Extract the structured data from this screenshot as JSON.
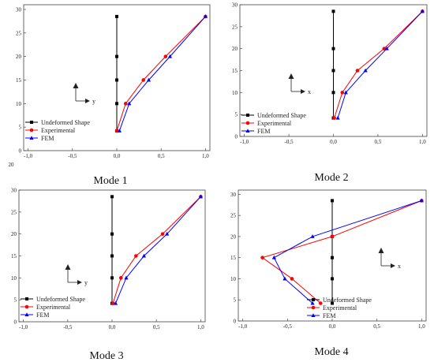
{
  "chart_data": [
    {
      "type": "line",
      "caption": "Mode 1",
      "x_ticks": [
        "-1,0",
        "-0,5",
        "0,0",
        "0,5",
        "1,0"
      ],
      "y_ticks": [
        "0",
        "5",
        "10",
        "15",
        "20",
        "25",
        "30"
      ],
      "xlim": [
        -1.05,
        1.05
      ],
      "ylim": [
        0,
        31
      ],
      "direction_label": "y",
      "series": [
        {
          "name": "Undeformed Shape",
          "color": "#000000",
          "marker": "square",
          "points": [
            [
              0,
              4.2
            ],
            [
              0,
              10
            ],
            [
              0,
              15
            ],
            [
              0,
              20
            ],
            [
              0,
              28.5
            ]
          ]
        },
        {
          "name": "Experimental",
          "color": "#ff0000",
          "marker": "circle",
          "points": [
            [
              0,
              4.2
            ],
            [
              0.1,
              10
            ],
            [
              0.3,
              15
            ],
            [
              0.55,
              20
            ],
            [
              1.0,
              28.5
            ]
          ]
        },
        {
          "name": "FEM",
          "color": "#0000ff",
          "marker": "triangle",
          "points": [
            [
              0.03,
              4.2
            ],
            [
              0.14,
              10
            ],
            [
              0.36,
              15
            ],
            [
              0.6,
              20
            ],
            [
              1.0,
              28.5
            ]
          ]
        }
      ]
    },
    {
      "type": "line",
      "caption": "Mode 2",
      "x_ticks": [
        "-1,0",
        "-0,5",
        "0,0",
        "0,5",
        "1,0"
      ],
      "y_ticks": [
        "0",
        "5",
        "10",
        "15",
        "20",
        "25",
        "30"
      ],
      "xlim": [
        -1.05,
        1.05
      ],
      "ylim": [
        0,
        30
      ],
      "direction_label": "x",
      "series": [
        {
          "name": "Undeformed Shape",
          "color": "#000000",
          "marker": "square",
          "points": [
            [
              0,
              4.2
            ],
            [
              0,
              10
            ],
            [
              0,
              15
            ],
            [
              0,
              20
            ],
            [
              0,
              28.5
            ]
          ]
        },
        {
          "name": "Experimental",
          "color": "#ff0000",
          "marker": "circle",
          "points": [
            [
              0.01,
              4.2
            ],
            [
              0.1,
              10
            ],
            [
              0.27,
              15
            ],
            [
              0.57,
              20
            ],
            [
              1.0,
              28.5
            ]
          ]
        },
        {
          "name": "FEM",
          "color": "#0000ff",
          "marker": "triangle",
          "points": [
            [
              0.05,
              4.2
            ],
            [
              0.14,
              10
            ],
            [
              0.36,
              15
            ],
            [
              0.6,
              20
            ],
            [
              1.0,
              28.5
            ]
          ]
        }
      ]
    },
    {
      "type": "line",
      "caption": "Mode 3",
      "x_ticks": [
        "-1,0",
        "-0,5",
        "0,0",
        "0,5",
        "1,0"
      ],
      "y_ticks": [
        "0",
        "5",
        "10",
        "15",
        "20",
        "25",
        "30"
      ],
      "xlim": [
        -1.05,
        1.05
      ],
      "ylim": [
        0,
        30
      ],
      "direction_label": "y",
      "series": [
        {
          "name": "Undeformed Shape",
          "color": "#000000",
          "marker": "square",
          "points": [
            [
              0,
              4.2
            ],
            [
              0,
              10
            ],
            [
              0,
              15
            ],
            [
              0,
              20
            ],
            [
              0,
              28.5
            ]
          ]
        },
        {
          "name": "Experimental",
          "color": "#ff0000",
          "marker": "circle",
          "points": [
            [
              0.01,
              4.2
            ],
            [
              0.1,
              10
            ],
            [
              0.27,
              15
            ],
            [
              0.57,
              20
            ],
            [
              1.0,
              28.5
            ]
          ]
        },
        {
          "name": "FEM",
          "color": "#0000ff",
          "marker": "triangle",
          "points": [
            [
              0.04,
              4.2
            ],
            [
              0.16,
              10
            ],
            [
              0.36,
              15
            ],
            [
              0.62,
              20
            ],
            [
              1.0,
              28.5
            ]
          ]
        }
      ]
    },
    {
      "type": "line",
      "caption": "Mode 4",
      "x_ticks": [
        "-1,0",
        "-0,5",
        "0,0",
        "0,5",
        "1,0"
      ],
      "y_ticks": [
        "0",
        "5",
        "10",
        "15",
        "20",
        "25",
        "30"
      ],
      "xlim": [
        -1.05,
        1.05
      ],
      "ylim": [
        0,
        31
      ],
      "direction_label": "x",
      "series": [
        {
          "name": "Undeformed Shape",
          "color": "#000000",
          "marker": "square",
          "points": [
            [
              0,
              4.2
            ],
            [
              0,
              10
            ],
            [
              0,
              15
            ],
            [
              0,
              20
            ],
            [
              0,
              28.5
            ]
          ]
        },
        {
          "name": "Experimental",
          "color": "#ff0000",
          "marker": "circle",
          "points": [
            [
              -0.13,
              4.2
            ],
            [
              -0.45,
              10
            ],
            [
              -0.78,
              15
            ],
            [
              0,
              20
            ],
            [
              1.0,
              28.5
            ]
          ]
        },
        {
          "name": "FEM",
          "color": "#0000ff",
          "marker": "triangle",
          "points": [
            [
              -0.22,
              4.2
            ],
            [
              -0.53,
              10
            ],
            [
              -0.65,
              15
            ],
            [
              -0.22,
              20
            ],
            [
              1.0,
              28.5
            ]
          ]
        }
      ]
    }
  ],
  "stray_text": "20"
}
